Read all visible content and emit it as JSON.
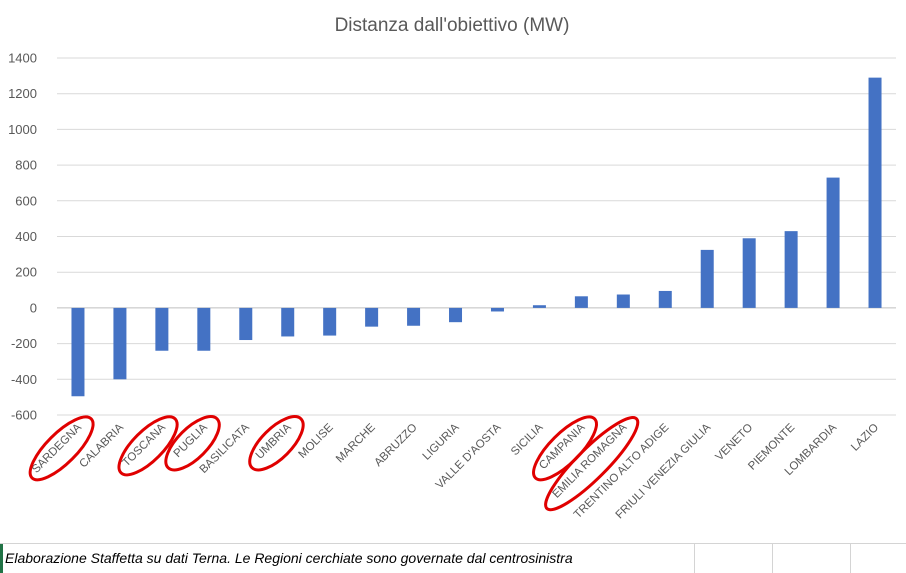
{
  "chart_data": {
    "type": "bar",
    "title": "Distanza dall'obiettivo (MW)",
    "xlabel": "",
    "ylabel": "",
    "ylim": [
      -600,
      1400
    ],
    "yticks": [
      1400,
      1200,
      1000,
      800,
      600,
      400,
      200,
      0,
      -200,
      -400,
      -600
    ],
    "grid": true,
    "legend": "none",
    "bar_color": "#4472C4",
    "highlight_color": "#E00000",
    "categories": [
      "SARDEGNA",
      "CALABRIA",
      "TOSCANA",
      "PUGLIA",
      "BASILICATA",
      "UMBRIA",
      "MOLISE",
      "MARCHE",
      "ABRUZZO",
      "LIGURIA",
      "VALLE D'AOSTA",
      "SICILIA",
      "CAMPANIA",
      "EMILIA ROMAGNA",
      "TRENTINO ALTO ADIGE",
      "FRIULI VENEZIA GIULIA",
      "VENETO",
      "PIEMONTE",
      "LOMBARDIA",
      "LAZIO"
    ],
    "values": [
      -495,
      -400,
      -240,
      -240,
      -180,
      -160,
      -155,
      -105,
      -100,
      -80,
      -20,
      15,
      65,
      75,
      95,
      325,
      390,
      430,
      730,
      1290
    ],
    "highlighted": [
      "SARDEGNA",
      "TOSCANA",
      "PUGLIA",
      "UMBRIA",
      "CAMPANIA",
      "EMILIA ROMAGNA"
    ]
  },
  "footer": {
    "note": "Elaborazione Staffetta su dati Terna. Le Regioni cerchiate sono governate dal centrosinistra"
  }
}
